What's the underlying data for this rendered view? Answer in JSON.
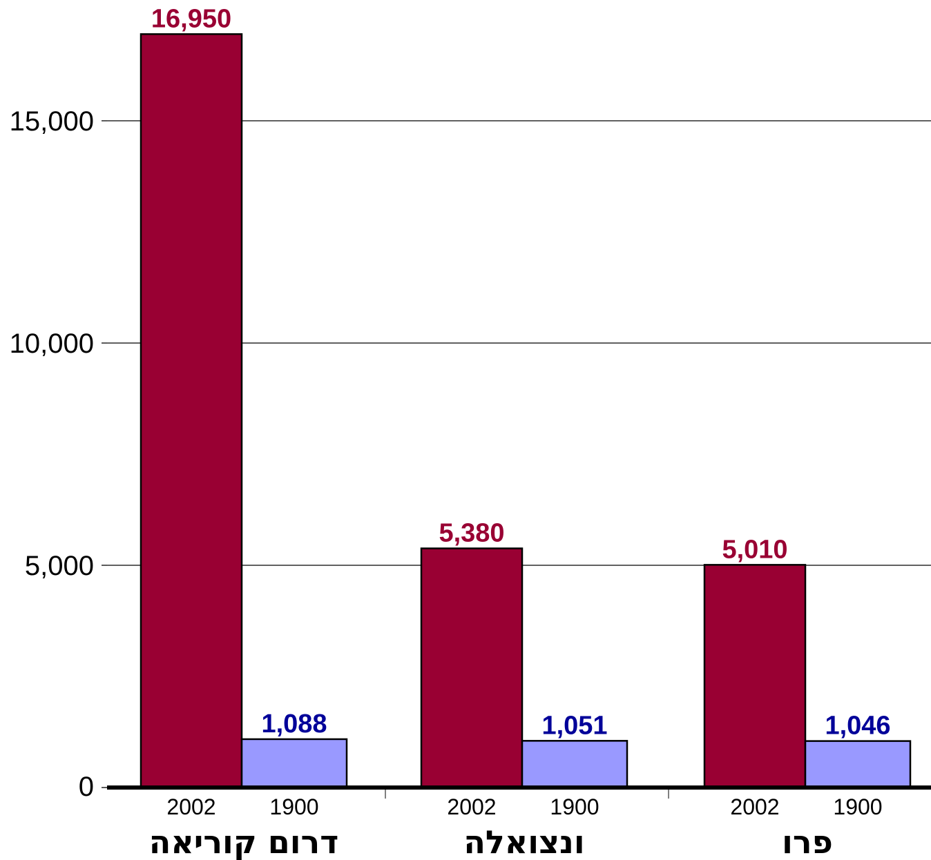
{
  "chart_data": {
    "type": "bar",
    "categories": [
      "דרום קוריאה",
      "ונצואלה",
      "פרו"
    ],
    "series": [
      {
        "year_label": "2002",
        "values": [
          16950,
          5380,
          5010
        ],
        "value_labels": [
          "16,950",
          "5,380",
          "5,010"
        ]
      },
      {
        "year_label": "1900",
        "values": [
          1088,
          1051,
          1046
        ],
        "value_labels": [
          "1,088",
          "1,051",
          "1,046"
        ]
      }
    ],
    "yticks": [
      0,
      5000,
      10000,
      15000
    ],
    "ytick_labels": [
      "0",
      "5,000",
      "10,000",
      "15,000"
    ],
    "ylim": [
      0,
      17000
    ],
    "grid": true,
    "colors": {
      "series_2002": "#990033",
      "series_1900": "#9999ff",
      "label_2002": "#990033",
      "label_1900": "#000099",
      "gridline": "#000000",
      "axis": "#000000"
    }
  }
}
